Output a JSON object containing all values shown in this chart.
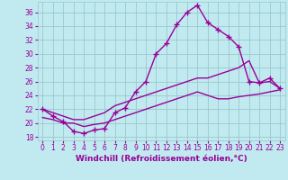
{
  "xlabel": "Windchill (Refroidissement éolien,°C)",
  "xlim": [
    -0.5,
    23.5
  ],
  "ylim": [
    17.5,
    37.5
  ],
  "yticks": [
    18,
    20,
    22,
    24,
    26,
    28,
    30,
    32,
    34,
    36
  ],
  "xticks": [
    0,
    1,
    2,
    3,
    4,
    5,
    6,
    7,
    8,
    9,
    10,
    11,
    12,
    13,
    14,
    15,
    16,
    17,
    18,
    19,
    20,
    21,
    22,
    23
  ],
  "bg_color": "#c0eaf0",
  "grid_color": "#99c8cc",
  "line_color": "#990099",
  "line1_x": [
    0,
    1,
    2,
    3,
    4,
    5,
    6,
    7,
    8,
    9,
    10,
    11,
    12,
    13,
    14,
    15,
    16,
    17,
    18,
    19,
    20,
    21,
    22,
    23
  ],
  "line1_y": [
    22.0,
    21.0,
    20.2,
    18.8,
    18.5,
    19.0,
    19.2,
    21.5,
    22.2,
    24.5,
    26.0,
    30.0,
    31.5,
    34.2,
    36.0,
    37.0,
    34.5,
    33.5,
    32.5,
    31.0,
    26.0,
    25.8,
    26.5,
    25.0
  ],
  "line2_x": [
    0,
    1,
    2,
    3,
    4,
    5,
    6,
    7,
    8,
    9,
    10,
    11,
    12,
    13,
    14,
    15,
    16,
    17,
    18,
    19,
    20,
    21,
    22,
    23
  ],
  "line2_y": [
    22.0,
    21.5,
    21.0,
    20.5,
    20.5,
    21.0,
    21.5,
    22.5,
    23.0,
    23.5,
    24.0,
    24.5,
    25.0,
    25.5,
    26.0,
    26.5,
    26.5,
    27.0,
    27.5,
    28.0,
    29.0,
    25.8,
    26.0,
    25.0
  ],
  "line3_x": [
    0,
    1,
    2,
    3,
    4,
    5,
    6,
    7,
    8,
    9,
    10,
    11,
    12,
    13,
    14,
    15,
    16,
    17,
    18,
    19,
    20,
    21,
    22,
    23
  ],
  "line3_y": [
    20.8,
    20.5,
    20.0,
    20.0,
    19.5,
    19.8,
    20.0,
    20.5,
    21.0,
    21.5,
    22.0,
    22.5,
    23.0,
    23.5,
    24.0,
    24.5,
    24.0,
    23.5,
    23.5,
    23.8,
    24.0,
    24.2,
    24.5,
    24.8
  ],
  "marker": "+",
  "markersize": 4,
  "linewidth": 1.0,
  "xlabel_fontsize": 6.5,
  "tick_fontsize": 5.5
}
